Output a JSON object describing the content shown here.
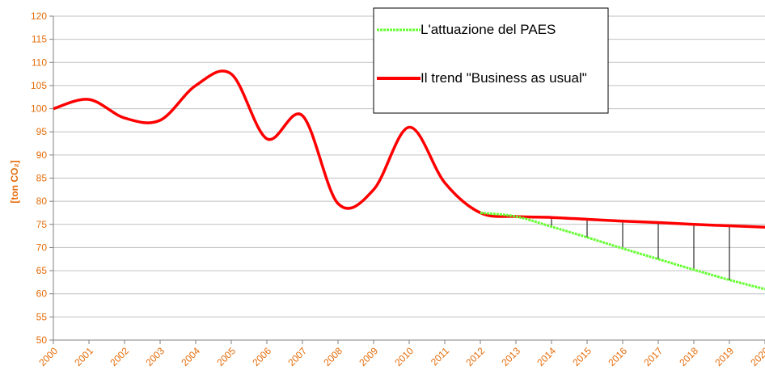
{
  "chart_data": {
    "type": "line",
    "y_label": "[ton CO₂]",
    "x": [
      "2000",
      "2001",
      "2002",
      "2003",
      "2004",
      "2005",
      "2006",
      "2007",
      "2008",
      "2009",
      "2010",
      "2011",
      "2012",
      "2013",
      "2014",
      "2015",
      "2016",
      "2017",
      "2018",
      "2019",
      "2020"
    ],
    "series": [
      {
        "name": "L'attuazione del PAES",
        "color": "#66ff33",
        "values": [
          null,
          null,
          null,
          null,
          null,
          null,
          null,
          null,
          null,
          null,
          null,
          null,
          77.5,
          76.7,
          74.5,
          72.2,
          69.8,
          67.5,
          65.2,
          63,
          61
        ]
      },
      {
        "name": "Il trend \"Business as usual\"",
        "color": "#ff0000",
        "values": [
          100,
          102,
          98,
          97.5,
          105,
          107.5,
          93.5,
          98.5,
          79.5,
          82.5,
          96,
          84,
          77.5,
          76.7,
          76.5,
          76.1,
          75.7,
          75.4,
          75,
          74.7,
          74.4
        ]
      }
    ],
    "ylim": [
      50,
      120
    ],
    "yticks": [
      50,
      55,
      60,
      65,
      70,
      75,
      80,
      85,
      90,
      95,
      100,
      105,
      110,
      115,
      120
    ],
    "grid": true,
    "legend": "top-right"
  }
}
